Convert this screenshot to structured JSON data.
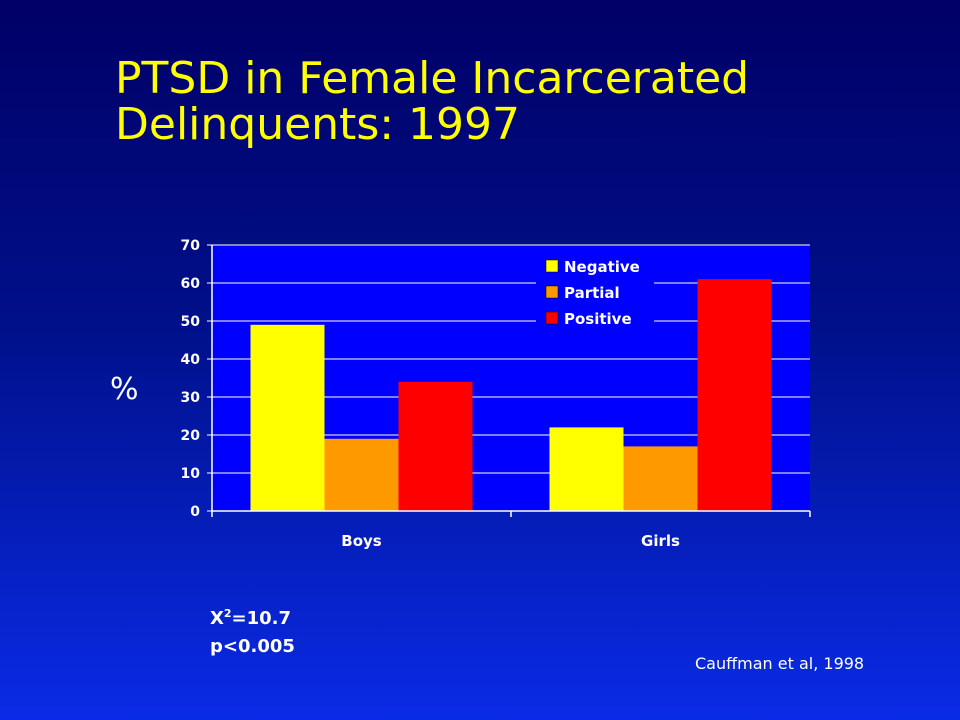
{
  "slide": {
    "title_line1": "PTSD in Female Incarcerated",
    "title_line2": "Delinquents: 1997",
    "stat_chi_prefix": "X",
    "stat_chi_sup": "2",
    "stat_chi_value": "=10.7",
    "stat_p": "p<0.005",
    "citation": "Cauffman et al,  1998"
  },
  "colors": {
    "background_top": "#000066",
    "background_bottom": "#0a2be6",
    "title": "#ffff00",
    "plot_area": "#0000ff"
  },
  "chart_data": {
    "type": "bar",
    "categories": [
      "Boys",
      "Girls"
    ],
    "series": [
      {
        "name": "Negative",
        "values": [
          49,
          22
        ],
        "color": "#ffff00"
      },
      {
        "name": "Partial",
        "values": [
          19,
          17
        ],
        "color": "#ff9900"
      },
      {
        "name": "Positive",
        "values": [
          34,
          61
        ],
        "color": "#ff0000"
      }
    ],
    "ylabel": "%",
    "ylim": [
      0,
      70
    ],
    "yticks": [
      0,
      10,
      20,
      30,
      40,
      50,
      60,
      70
    ],
    "grid": true,
    "legend_position": "top-right"
  }
}
